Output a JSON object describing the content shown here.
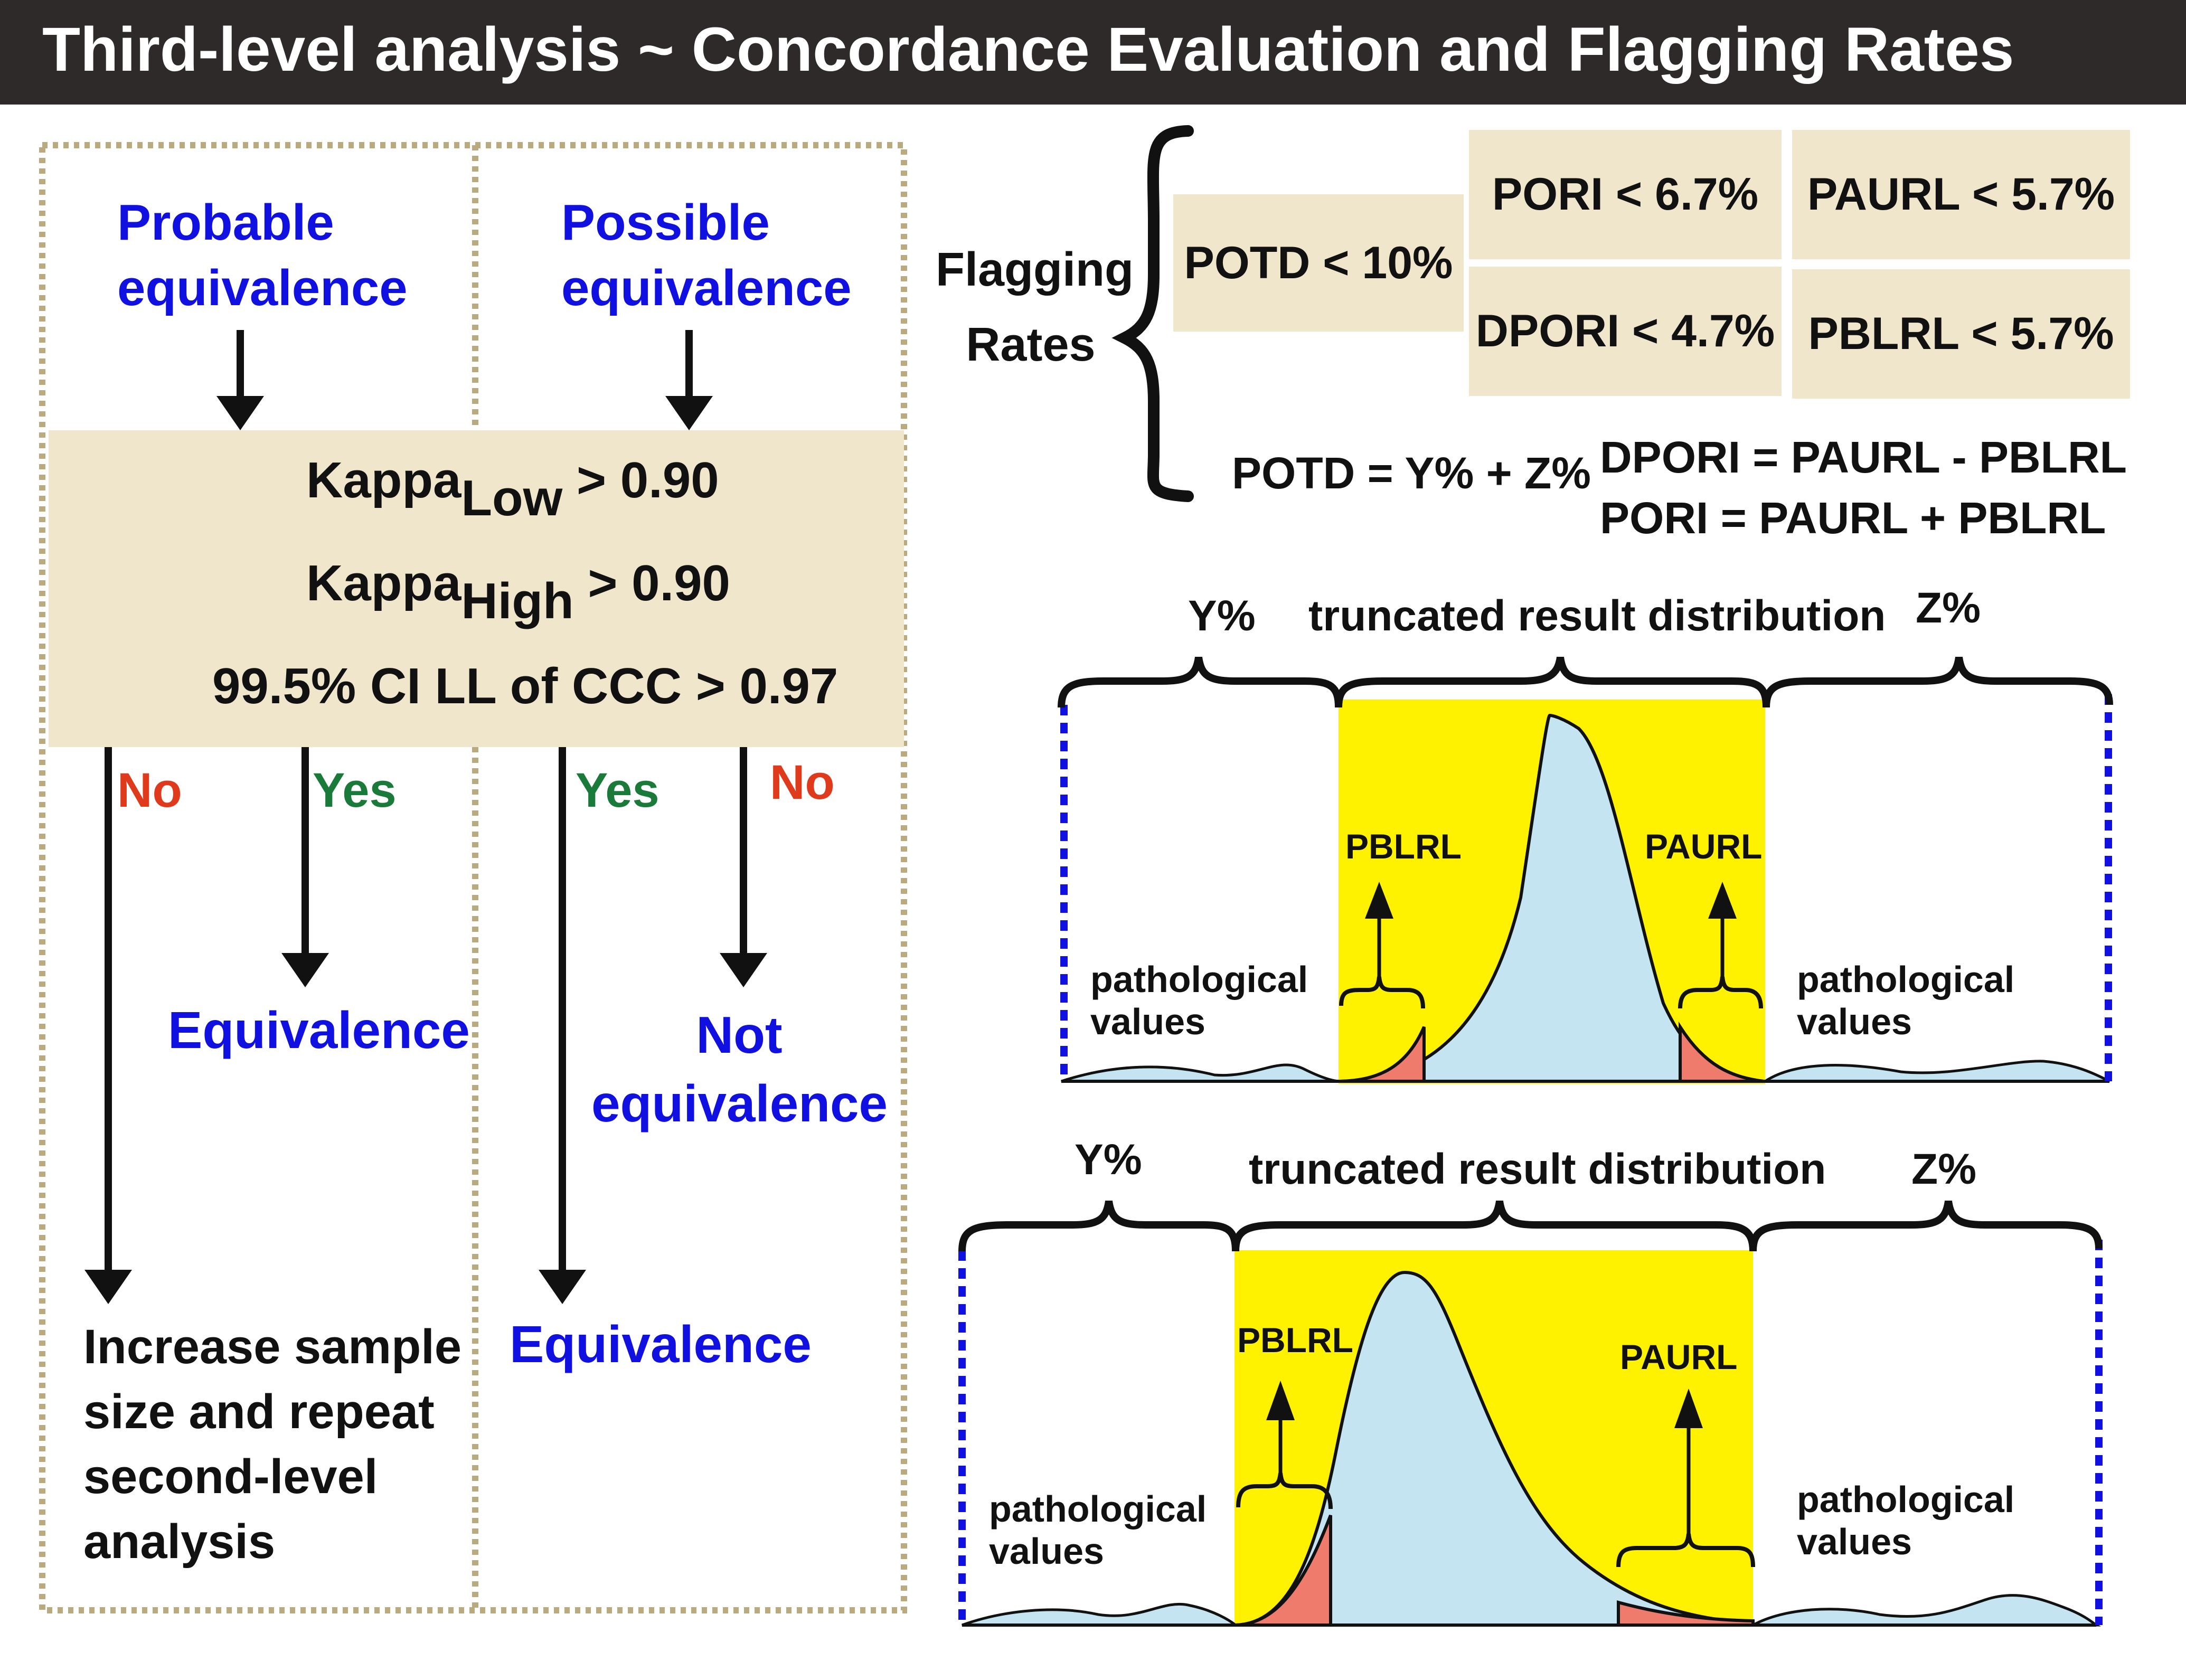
{
  "title": "Third-level analysis ~ Concordance Evaluation and Flagging Rates",
  "flowchart": {
    "probable": [
      "Probable",
      "equivalence"
    ],
    "possible": [
      "Possible",
      "equivalence"
    ],
    "criteria": {
      "kappa_low": {
        "base": "Kappa",
        "sub": "Low",
        "rest": " > 0.90"
      },
      "kappa_high": {
        "base": "Kappa",
        "sub": "High",
        "rest": " > 0.90"
      },
      "ccc": "99.5% CI LL of CCC > 0.97"
    },
    "branch_labels": {
      "no_left": "No",
      "yes_left": "Yes",
      "yes_right": "Yes",
      "no_right": "No"
    },
    "outcomes": {
      "equivalence_left": "Equivalence",
      "not_equivalence": [
        "Not",
        "equivalence"
      ],
      "equivalence_right": "Equivalence",
      "increase": [
        "Increase sample",
        "size and repeat",
        "second-level",
        "analysis"
      ]
    }
  },
  "flagging": {
    "label": [
      "Flagging",
      "Rates"
    ],
    "potd": "POTD < 10%",
    "pori": "PORI < 6.7%",
    "dpori": "DPORI < 4.7%",
    "paurl": "PAURL < 5.7%",
    "pblrl": "PBLRL < 5.7%",
    "formula_potd": "POTD = Y% + Z%",
    "formula_dpori": "DPORI = PAURL - PBLRL",
    "formula_pori": "PORI = PAURL + PBLRL"
  },
  "distribution_top": {
    "y": "Y%",
    "truncated": "truncated result distribution",
    "z": "Z%",
    "pblrl": "PBLRL",
    "paurl": "PAURL",
    "patho_left": [
      "pathological",
      "values"
    ],
    "patho_right": [
      "pathological",
      "values"
    ]
  },
  "distribution_bottom": {
    "y": "Y%",
    "truncated": "truncated result distribution",
    "z": "Z%",
    "pblrl": "PBLRL",
    "paurl": "PAURL",
    "patho_left": [
      "pathological",
      "values"
    ],
    "patho_right": [
      "pathological",
      "values"
    ]
  },
  "colors": {
    "title_bg": "#2e2a29",
    "beige": "#efe6cc",
    "blue_text": "#1010e0",
    "green_text": "#1a7a3a",
    "red_text": "#e03a1c",
    "yellow": "#fff200",
    "light_blue": "#c4e4f2",
    "salmon": "#ee7b6c"
  }
}
